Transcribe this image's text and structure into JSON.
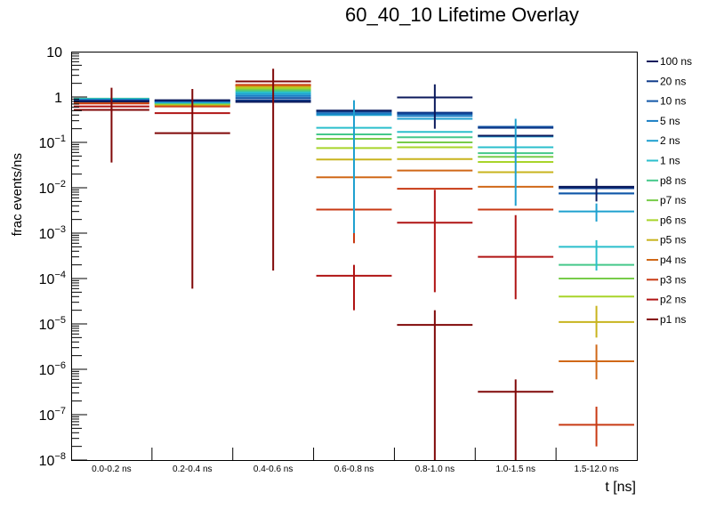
{
  "chart_data": {
    "type": "bar",
    "subtype": "histogram-errorbar-overlay",
    "title": "60_40_10 Lifetime Overlay",
    "xlabel": "t [ns]",
    "ylabel": "frac events/ns",
    "yscale": "log",
    "ylim": [
      1e-08,
      10
    ],
    "ytick_labels": [
      {
        "v": 10,
        "base": "10",
        "exp": ""
      },
      {
        "v": 1,
        "base": "1",
        "exp": ""
      },
      {
        "v": 0.1,
        "base": "10",
        "exp": "−1"
      },
      {
        "v": 0.01,
        "base": "10",
        "exp": "−2"
      },
      {
        "v": 0.001,
        "base": "10",
        "exp": "−3"
      },
      {
        "v": 0.0001,
        "base": "10",
        "exp": "−4"
      },
      {
        "v": 1e-05,
        "base": "10",
        "exp": "−5"
      },
      {
        "v": 1e-06,
        "base": "10",
        "exp": "−6"
      },
      {
        "v": 1e-07,
        "base": "10",
        "exp": "−7"
      },
      {
        "v": 1e-08,
        "base": "10",
        "exp": "−8"
      }
    ],
    "categories": [
      "0.0-0.2 ns",
      "0.2-0.4 ns",
      "0.4-0.6 ns",
      "0.6-0.8 ns",
      "0.8-1.0 ns",
      "1.0-1.5 ns",
      "1.5-12.0 ns"
    ],
    "legend_position": "right",
    "series": [
      {
        "name": "100 ns",
        "color": "#0b1a5c",
        "values": [
          0.8,
          0.85,
          0.78,
          0.5,
          0.98,
          0.14,
          0.0105
        ]
      },
      {
        "name": "20 ns",
        "color": "#0f3a8a",
        "values": [
          0.82,
          0.84,
          0.85,
          0.5,
          0.45,
          0.21,
          0.0098
        ]
      },
      {
        "name": "10 ns",
        "color": "#1257a8",
        "values": [
          0.84,
          0.82,
          0.95,
          0.47,
          0.42,
          0.22,
          0.0075
        ]
      },
      {
        "name": "5 ns",
        "color": "#1a7ec4",
        "values": [
          0.86,
          0.8,
          1.05,
          0.43,
          0.38,
          0.14,
          0.0075
        ]
      },
      {
        "name": "2 ns",
        "color": "#1fa0cf",
        "values": [
          0.88,
          0.78,
          1.15,
          0.4,
          0.33,
          0.135,
          0.003
        ]
      },
      {
        "name": "1 ns",
        "color": "#2bbfcc",
        "values": [
          0.9,
          0.76,
          1.25,
          0.21,
          0.17,
          0.078,
          0.0005
        ]
      },
      {
        "name": "p8 ns",
        "color": "#45c88a",
        "values": [
          0.92,
          0.74,
          1.35,
          0.15,
          0.13,
          0.058,
          0.0002
        ]
      },
      {
        "name": "p7 ns",
        "color": "#78cc4a",
        "values": [
          0.9,
          0.72,
          1.45,
          0.12,
          0.1,
          0.048,
          0.0001
        ]
      },
      {
        "name": "p6 ns",
        "color": "#a8d42a",
        "values": [
          0.88,
          0.7,
          1.55,
          0.075,
          0.078,
          0.037,
          4e-05
        ]
      },
      {
        "name": "p5 ns",
        "color": "#c8b41e",
        "values": [
          0.84,
          0.68,
          1.65,
          0.042,
          0.043,
          0.022,
          1.1e-05
        ]
      },
      {
        "name": "p4 ns",
        "color": "#d06818",
        "values": [
          0.78,
          0.66,
          1.75,
          0.017,
          0.024,
          0.0105,
          1.5e-06
        ]
      },
      {
        "name": "p3 ns",
        "color": "#c83a14",
        "values": [
          0.72,
          0.62,
          1.85,
          0.0033,
          0.0095,
          0.0033,
          6e-08
        ]
      },
      {
        "name": "p2 ns",
        "color": "#b01414",
        "values": [
          0.62,
          0.44,
          1.8,
          0.000115,
          0.0017,
          0.0003,
          null
        ]
      },
      {
        "name": "p1 ns",
        "color": "#800808",
        "values": [
          0.52,
          0.16,
          2.2,
          null,
          9.5e-06,
          3.2e-07,
          null
        ]
      }
    ],
    "errorbars": [
      {
        "series": "p1 ns",
        "bin": 0,
        "lo": 0.036,
        "hi": 1.6
      },
      {
        "series": "p1 ns",
        "bin": 1,
        "lo": 6e-05,
        "hi": 1.5
      },
      {
        "series": "p1 ns",
        "bin": 2,
        "lo": 0.00015,
        "hi": 4.2
      },
      {
        "series": "100 ns",
        "bin": 4,
        "lo": 0.2,
        "hi": 1.9
      },
      {
        "series": "p1 ns",
        "bin": 4,
        "lo": 1e-08,
        "hi": 2e-05
      },
      {
        "series": "p1 ns",
        "bin": 5,
        "lo": 1e-08,
        "hi": 6e-07
      },
      {
        "series": "p2 ns",
        "bin": 3,
        "lo": 2e-05,
        "hi": 0.0002
      },
      {
        "series": "p2 ns",
        "bin": 4,
        "lo": 5e-05,
        "hi": 0.009
      },
      {
        "series": "p2 ns",
        "bin": 5,
        "lo": 3.5e-05,
        "hi": 0.0025
      },
      {
        "series": "p3 ns",
        "bin": 3,
        "lo": 0.0006,
        "hi": 0.017
      },
      {
        "series": "p3 ns",
        "bin": 6,
        "lo": 2e-08,
        "hi": 1.5e-07
      },
      {
        "series": "p4 ns",
        "bin": 6,
        "lo": 6e-07,
        "hi": 3.5e-06
      },
      {
        "series": "p5 ns",
        "bin": 6,
        "lo": 5e-06,
        "hi": 2.5e-05
      },
      {
        "series": "2 ns",
        "bin": 3,
        "lo": 0.001,
        "hi": 0.85
      },
      {
        "series": "2 ns",
        "bin": 5,
        "lo": 0.004,
        "hi": 0.33
      },
      {
        "series": "100 ns",
        "bin": 6,
        "lo": 0.005,
        "hi": 0.016
      },
      {
        "series": "2 ns",
        "bin": 6,
        "lo": 0.0018,
        "hi": 0.0045
      },
      {
        "series": "1 ns",
        "bin": 6,
        "lo": 0.00015,
        "hi": 0.0007
      }
    ]
  }
}
